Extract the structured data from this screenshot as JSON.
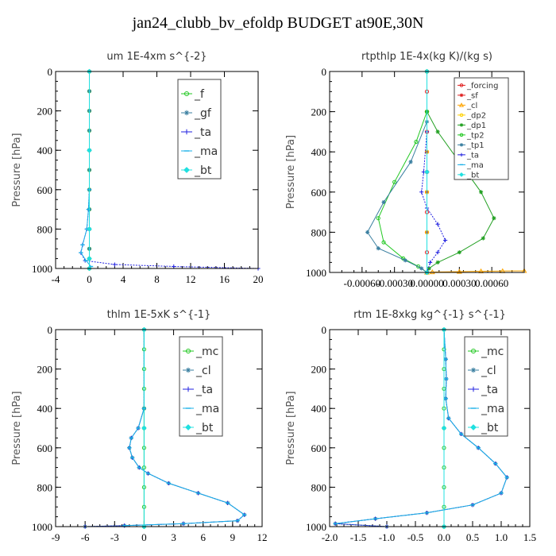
{
  "page_title": "jan24_clubb_bv_efoldp  BUDGET at90E,30N",
  "chart_data": [
    {
      "type": "line",
      "title": "um  1E-4xm s^{-2}",
      "ylabel": "Pressure [hPa]",
      "xlim": [
        -4,
        20
      ],
      "ylim": [
        1000,
        0
      ],
      "xticks": [
        "-4",
        "0",
        "4",
        "8",
        "12",
        "16",
        "20"
      ],
      "yticks": [
        "0",
        "200",
        "400",
        "600",
        "800",
        "1000"
      ],
      "legend_position": "top-right",
      "series": [
        {
          "name": "_f",
          "color": "#22c822",
          "marker": "circle",
          "x": [
            0,
            0,
            0,
            0,
            0,
            0,
            0,
            0,
            0,
            0,
            0,
            0
          ],
          "y": [
            0,
            100,
            200,
            300,
            400,
            500,
            600,
            700,
            800,
            900,
            950,
            1000
          ]
        },
        {
          "name": "_gf",
          "color": "#3a7fa0",
          "marker": "star",
          "x": [
            0,
            0,
            0,
            0,
            0,
            0,
            0,
            0,
            0,
            0,
            0
          ],
          "y": [
            0,
            100,
            200,
            300,
            400,
            500,
            600,
            700,
            800,
            900,
            1000
          ]
        },
        {
          "name": "_ta",
          "color": "#2020e0",
          "marker": "plus",
          "x": [
            0,
            0,
            0,
            -0.1,
            -0.3,
            -0.8,
            -1.0,
            -0.5,
            3.0,
            10.0,
            20.0
          ],
          "y": [
            0,
            400,
            600,
            700,
            800,
            880,
            920,
            960,
            980,
            990,
            1000
          ]
        },
        {
          "name": "_ma",
          "color": "#1ab0e8",
          "marker": "dash",
          "x": [
            0,
            0,
            0,
            -0.1,
            -0.3,
            -0.8,
            -1.0,
            -0.4,
            0.2
          ],
          "y": [
            0,
            400,
            600,
            700,
            800,
            880,
            920,
            960,
            990
          ]
        },
        {
          "name": "_bt",
          "color": "#20e0e0",
          "marker": "diamond",
          "x": [
            0,
            0,
            0,
            0,
            0
          ],
          "y": [
            0,
            400,
            800,
            950,
            1000
          ]
        }
      ]
    },
    {
      "type": "line",
      "title": "rtpthlp  1E-4x(kg K)/(kg s)",
      "ylabel": "Pressure [hPa]",
      "xlim": [
        -0.0009,
        0.0009
      ],
      "ylim": [
        1000,
        0
      ],
      "xticks": [
        "-0.00060",
        "-0.00030",
        "0.00000",
        "0.00030",
        "0.00060"
      ],
      "yticks": [
        "0",
        "200",
        "400",
        "600",
        "800",
        "1000"
      ],
      "legend_position": "top-right",
      "series": [
        {
          "name": "_forcing",
          "color": "#e02020",
          "marker": "circle",
          "x": [
            0,
            0,
            0,
            0,
            0,
            0,
            0,
            0,
            0,
            0,
            0
          ],
          "y": [
            0,
            100,
            200,
            300,
            400,
            500,
            600,
            700,
            800,
            900,
            1000
          ]
        },
        {
          "name": "_sf",
          "color": "#e02020",
          "marker": "star",
          "x": [
            0,
            0,
            0,
            0,
            0,
            0
          ],
          "y": [
            0,
            200,
            400,
            600,
            800,
            1000
          ]
        },
        {
          "name": "_cl",
          "color": "#ffa500",
          "marker": "triangle",
          "x": [
            0,
            5e-05,
            0.0003,
            0.0005,
            0.0007,
            0.0009
          ],
          "y": [
            1000,
            998,
            996,
            994,
            993,
            992
          ]
        },
        {
          "name": "_dp2",
          "color": "#ffd000",
          "marker": "circle",
          "x": [
            0,
            0,
            0,
            0,
            0,
            0
          ],
          "y": [
            0,
            200,
            400,
            600,
            800,
            1000
          ]
        },
        {
          "name": "_dp1",
          "color": "#22a022",
          "marker": "star",
          "x": [
            0,
            0,
            0.0001,
            0.0003,
            0.0005,
            0.00062,
            0.00052,
            0.0003,
            0.0001,
            2e-05,
            0
          ],
          "y": [
            0,
            200,
            300,
            450,
            600,
            730,
            830,
            900,
            950,
            980,
            1000
          ]
        },
        {
          "name": "_tp2",
          "color": "#22c822",
          "marker": "circle",
          "x": [
            0,
            0,
            -0.0001,
            -0.0003,
            -0.00045,
            -0.0004,
            -0.00022,
            -8e-05,
            0
          ],
          "y": [
            0,
            200,
            350,
            550,
            730,
            850,
            930,
            970,
            1000
          ]
        },
        {
          "name": "_tp1",
          "color": "#3a7fa0",
          "marker": "star",
          "x": [
            0,
            0,
            -0.00015,
            -0.0004,
            -0.00055,
            -0.00045,
            -0.0002,
            -5e-05,
            0
          ],
          "y": [
            0,
            250,
            450,
            650,
            800,
            880,
            940,
            980,
            1000
          ]
        },
        {
          "name": "_ta",
          "color": "#2020e0",
          "marker": "plus",
          "x": [
            0,
            0,
            -3e-05,
            -5e-05,
            0,
            0.0001,
            0.00017,
            0.0001,
            3e-05,
            0
          ],
          "y": [
            0,
            300,
            500,
            600,
            680,
            760,
            840,
            900,
            950,
            1000
          ]
        },
        {
          "name": "_ma",
          "color": "#1ab0e8",
          "marker": "dash",
          "x": [
            0,
            0,
            0
          ],
          "y": [
            0,
            500,
            1000
          ]
        },
        {
          "name": "_bt",
          "color": "#20e0e0",
          "marker": "diamond",
          "x": [
            0,
            0,
            0
          ],
          "y": [
            0,
            500,
            1000
          ]
        }
      ]
    },
    {
      "type": "line",
      "title": "thlm  1E-5xK s^{-1}",
      "ylabel": "Pressure [hPa]",
      "xlim": [
        -9,
        12
      ],
      "ylim": [
        1000,
        0
      ],
      "xticks": [
        "-9",
        "-6",
        "-3",
        "0",
        "3",
        "6",
        "9",
        "12"
      ],
      "yticks": [
        "0",
        "200",
        "400",
        "600",
        "800",
        "1000"
      ],
      "legend_position": "top-right",
      "series": [
        {
          "name": "_mc",
          "color": "#22c822",
          "marker": "circle",
          "x": [
            0,
            0,
            0,
            0,
            0,
            0,
            0,
            0,
            0,
            0,
            0
          ],
          "y": [
            0,
            100,
            200,
            300,
            400,
            500,
            600,
            700,
            800,
            900,
            1000
          ]
        },
        {
          "name": "_cl",
          "color": "#3a7fa0",
          "marker": "star",
          "x": [
            0,
            0,
            -0.6,
            -1.3,
            -1.5,
            -1.2,
            -0.5,
            0.4,
            2.5,
            5.5,
            8.5,
            10.2,
            9.5,
            4.0,
            -2.0,
            -6.0
          ],
          "y": [
            0,
            400,
            500,
            550,
            600,
            650,
            700,
            730,
            780,
            830,
            880,
            940,
            970,
            985,
            995,
            1000
          ]
        },
        {
          "name": "_ta",
          "color": "#2020e0",
          "marker": "plus",
          "x": [
            0,
            0,
            -0.6,
            -1.3,
            -1.5,
            -1.2,
            -0.5,
            0.4,
            2.5,
            5.5,
            8.5,
            10.2,
            9.5,
            4.0,
            -2.0,
            -6.0
          ],
          "y": [
            0,
            400,
            500,
            550,
            600,
            650,
            700,
            730,
            780,
            830,
            880,
            940,
            970,
            985,
            995,
            1000
          ]
        },
        {
          "name": "_ma",
          "color": "#1ab0e8",
          "marker": "dash",
          "x": [
            0,
            0,
            -0.6,
            -1.3,
            -1.5,
            -1.2,
            -0.5,
            0.4,
            2.5,
            5.5,
            8.5,
            10.2,
            9.5,
            4.0,
            -2.0
          ],
          "y": [
            0,
            400,
            500,
            550,
            600,
            650,
            700,
            730,
            780,
            830,
            880,
            940,
            970,
            985,
            995
          ]
        },
        {
          "name": "_bt",
          "color": "#20e0e0",
          "marker": "diamond",
          "x": [
            0,
            0,
            0
          ],
          "y": [
            0,
            500,
            1000
          ]
        }
      ]
    },
    {
      "type": "line",
      "title": "rtm  1E-8xkg kg^{-1} s^{-1}",
      "ylabel": "Pressure [hPa]",
      "xlim": [
        -2.0,
        1.5
      ],
      "ylim": [
        1000,
        0
      ],
      "xticks": [
        "-2.0",
        "-1.5",
        "-1.0",
        "-0.5",
        "0.0",
        "0.5",
        "1.0",
        "1.5"
      ],
      "yticks": [
        "0",
        "200",
        "400",
        "600",
        "800",
        "1000"
      ],
      "legend_position": "top-right",
      "series": [
        {
          "name": "_mc",
          "color": "#22c822",
          "marker": "circle",
          "x": [
            0,
            0,
            0,
            0,
            0,
            0,
            0,
            0,
            0,
            0,
            0
          ],
          "y": [
            0,
            100,
            200,
            300,
            400,
            500,
            600,
            700,
            800,
            900,
            1000
          ]
        },
        {
          "name": "_cl",
          "color": "#3a7fa0",
          "marker": "star",
          "x": [
            0,
            0.03,
            0.04,
            0.03,
            0.08,
            0.3,
            0.6,
            0.9,
            1.1,
            1.0,
            0.5,
            -0.3,
            -1.2,
            -1.9,
            -1.0
          ],
          "y": [
            0,
            150,
            250,
            350,
            450,
            530,
            600,
            680,
            750,
            830,
            890,
            930,
            960,
            985,
            1000
          ]
        },
        {
          "name": "_ta",
          "color": "#2020e0",
          "marker": "plus",
          "x": [
            0,
            0.03,
            0.04,
            0.03,
            0.08,
            0.3,
            0.6,
            0.9,
            1.1,
            1.0,
            0.5,
            -0.3,
            -1.2,
            -1.9,
            -1.0
          ],
          "y": [
            0,
            150,
            250,
            350,
            450,
            530,
            600,
            680,
            750,
            830,
            890,
            930,
            960,
            985,
            1000
          ]
        },
        {
          "name": "_ma",
          "color": "#1ab0e8",
          "marker": "dash",
          "x": [
            0,
            0.03,
            0.04,
            0.03,
            0.08,
            0.3,
            0.6,
            0.9,
            1.1,
            1.0,
            0.5,
            -0.3,
            -1.2,
            -1.9
          ],
          "y": [
            0,
            150,
            250,
            350,
            450,
            530,
            600,
            680,
            750,
            830,
            890,
            930,
            960,
            985
          ]
        },
        {
          "name": "_bt",
          "color": "#20e0e0",
          "marker": "diamond",
          "x": [
            0,
            0,
            0
          ],
          "y": [
            0,
            500,
            1000
          ]
        }
      ]
    }
  ]
}
